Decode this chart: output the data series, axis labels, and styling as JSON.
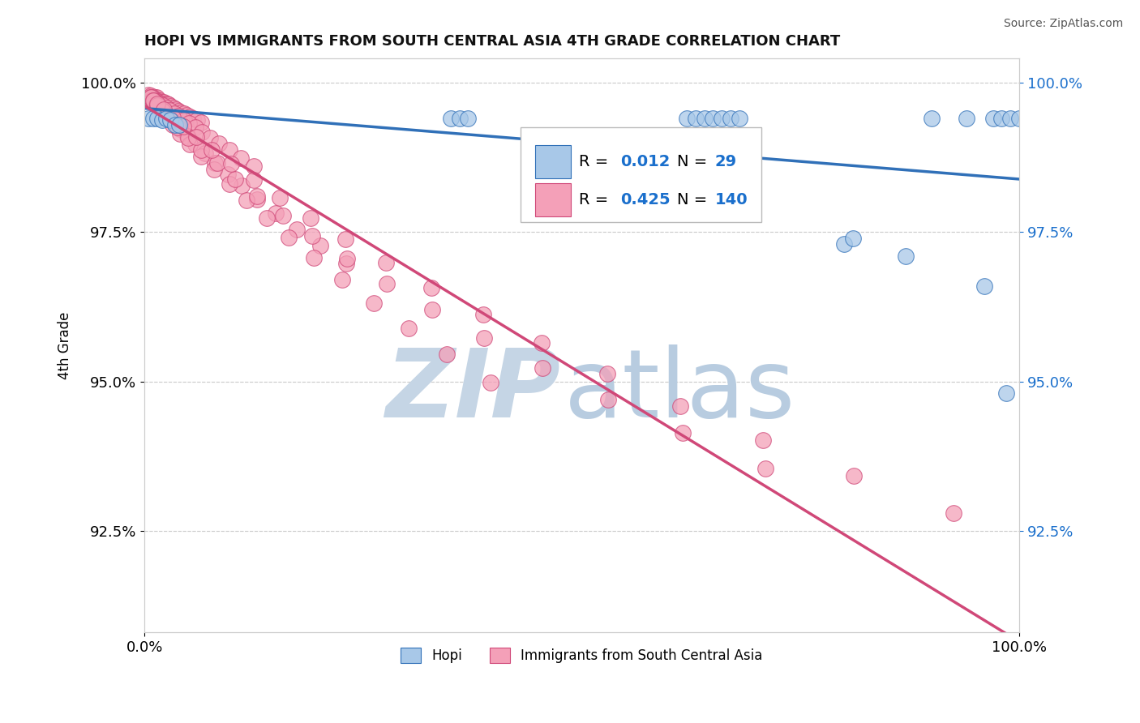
{
  "title": "HOPI VS IMMIGRANTS FROM SOUTH CENTRAL ASIA 4TH GRADE CORRELATION CHART",
  "source_text": "Source: ZipAtlas.com",
  "ylabel": "4th Grade",
  "legend_label1": "Hopi",
  "legend_label2": "Immigrants from South Central Asia",
  "blue_color": "#a8c8e8",
  "pink_color": "#f4a0b8",
  "line_blue": "#3070b8",
  "line_pink": "#d04878",
  "watermark_zip_color": "#c5d5e5",
  "watermark_atlas_color": "#b8cce0",
  "background_color": "#ffffff",
  "r_n_color": "#1a6fcc",
  "xlim": [
    0.0,
    1.0
  ],
  "ylim": [
    0.908,
    1.004
  ],
  "y_ticks": [
    0.925,
    0.95,
    0.975,
    1.0
  ],
  "x_ticks": [
    0.0,
    1.0
  ],
  "hopi_x": [
    0.005,
    0.01,
    0.015,
    0.02,
    0.025,
    0.03,
    0.035,
    0.04,
    0.35,
    0.36,
    0.37,
    0.62,
    0.63,
    0.64,
    0.65,
    0.66,
    0.67,
    0.68,
    0.8,
    0.81,
    0.87,
    0.9,
    0.94,
    0.96,
    0.97,
    0.98,
    0.985,
    0.99,
    1.0
  ],
  "hopi_y": [
    0.994,
    0.994,
    0.994,
    0.9938,
    0.994,
    0.9938,
    0.993,
    0.993,
    0.994,
    0.994,
    0.994,
    0.994,
    0.994,
    0.994,
    0.994,
    0.994,
    0.994,
    0.994,
    0.973,
    0.974,
    0.971,
    0.994,
    0.994,
    0.966,
    0.994,
    0.994,
    0.948,
    0.994,
    0.994
  ],
  "imm_x": [
    0.005,
    0.006,
    0.007,
    0.008,
    0.009,
    0.01,
    0.011,
    0.012,
    0.013,
    0.014,
    0.015,
    0.016,
    0.017,
    0.018,
    0.02,
    0.022,
    0.024,
    0.026,
    0.028,
    0.03,
    0.033,
    0.036,
    0.039,
    0.042,
    0.045,
    0.048,
    0.052,
    0.056,
    0.06,
    0.065,
    0.007,
    0.009,
    0.011,
    0.013,
    0.015,
    0.018,
    0.021,
    0.025,
    0.029,
    0.034,
    0.039,
    0.045,
    0.051,
    0.058,
    0.066,
    0.075,
    0.085,
    0.097,
    0.11,
    0.125,
    0.007,
    0.009,
    0.012,
    0.015,
    0.019,
    0.023,
    0.028,
    0.034,
    0.041,
    0.049,
    0.058,
    0.069,
    0.081,
    0.095,
    0.111,
    0.129,
    0.15,
    0.174,
    0.201,
    0.231,
    0.007,
    0.01,
    0.014,
    0.019,
    0.025,
    0.032,
    0.041,
    0.052,
    0.065,
    0.08,
    0.097,
    0.117,
    0.14,
    0.165,
    0.194,
    0.226,
    0.262,
    0.302,
    0.346,
    0.396,
    0.01,
    0.015,
    0.021,
    0.029,
    0.038,
    0.05,
    0.065,
    0.083,
    0.104,
    0.129,
    0.158,
    0.192,
    0.232,
    0.277,
    0.329,
    0.388,
    0.455,
    0.53,
    0.615,
    0.71,
    0.015,
    0.022,
    0.032,
    0.044,
    0.059,
    0.077,
    0.099,
    0.125,
    0.155,
    0.19,
    0.23,
    0.276,
    0.328,
    0.387,
    0.454,
    0.529,
    0.613,
    0.707,
    0.811,
    0.925
  ],
  "imm_y": [
    0.998,
    0.9975,
    0.9973,
    0.9975,
    0.9973,
    0.9975,
    0.9973,
    0.9975,
    0.9973,
    0.9975,
    0.997,
    0.997,
    0.9968,
    0.997,
    0.9968,
    0.9967,
    0.9965,
    0.9965,
    0.9963,
    0.996,
    0.9958,
    0.9955,
    0.9952,
    0.995,
    0.9948,
    0.9946,
    0.9943,
    0.994,
    0.9937,
    0.9933,
    0.9978,
    0.9975,
    0.9972,
    0.997,
    0.9968,
    0.9965,
    0.9962,
    0.9958,
    0.9954,
    0.9949,
    0.9944,
    0.9938,
    0.9932,
    0.9925,
    0.9917,
    0.9908,
    0.9898,
    0.9887,
    0.9874,
    0.986,
    0.9975,
    0.9972,
    0.9968,
    0.9963,
    0.9957,
    0.995,
    0.9942,
    0.9933,
    0.9922,
    0.991,
    0.9897,
    0.9882,
    0.9865,
    0.9847,
    0.9827,
    0.9805,
    0.9781,
    0.9755,
    0.9727,
    0.9697,
    0.9975,
    0.997,
    0.9963,
    0.9954,
    0.9943,
    0.993,
    0.9915,
    0.9897,
    0.9877,
    0.9855,
    0.983,
    0.9803,
    0.9773,
    0.9741,
    0.9707,
    0.967,
    0.9631,
    0.9589,
    0.9545,
    0.9498,
    0.997,
    0.9962,
    0.9952,
    0.994,
    0.9925,
    0.9908,
    0.9888,
    0.9865,
    0.9839,
    0.981,
    0.9778,
    0.9743,
    0.9705,
    0.9664,
    0.962,
    0.9573,
    0.9523,
    0.947,
    0.9414,
    0.9355,
    0.9965,
    0.9955,
    0.9942,
    0.9927,
    0.9909,
    0.9888,
    0.9864,
    0.9837,
    0.9807,
    0.9774,
    0.9738,
    0.9699,
    0.9657,
    0.9612,
    0.9564,
    0.9513,
    0.9459,
    0.9402,
    0.9342,
    0.928
  ]
}
